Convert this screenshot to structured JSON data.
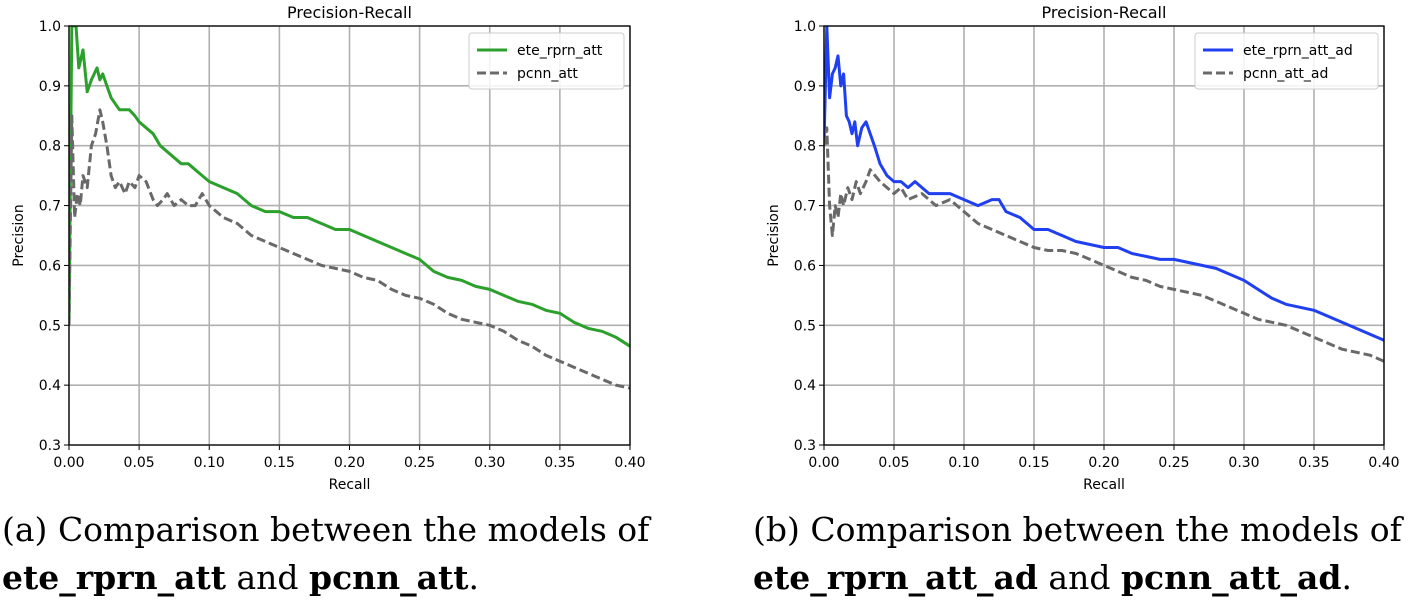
{
  "chart_data": [
    {
      "type": "line",
      "title": "Precision-Recall",
      "xlabel": "Recall",
      "ylabel": "Precision",
      "xlim": [
        0.0,
        0.4
      ],
      "ylim": [
        0.3,
        1.0
      ],
      "grid": true,
      "legend_position": "top-right",
      "xticks": [
        "0.00",
        "0.05",
        "0.10",
        "0.15",
        "0.20",
        "0.25",
        "0.30",
        "0.35",
        "0.40"
      ],
      "yticks": [
        "0.3",
        "0.4",
        "0.5",
        "0.6",
        "0.7",
        "0.8",
        "0.9",
        "1.0"
      ],
      "series": [
        {
          "name": "ete_rprn_att",
          "color": "#2ca02c",
          "style": "solid",
          "points": [
            [
              0.0,
              0.5
            ],
            [
              0.002,
              1.0
            ],
            [
              0.005,
              1.0
            ],
            [
              0.007,
              0.93
            ],
            [
              0.01,
              0.96
            ],
            [
              0.013,
              0.89
            ],
            [
              0.016,
              0.91
            ],
            [
              0.02,
              0.93
            ],
            [
              0.022,
              0.91
            ],
            [
              0.024,
              0.92
            ],
            [
              0.027,
              0.9
            ],
            [
              0.03,
              0.88
            ],
            [
              0.033,
              0.87
            ],
            [
              0.036,
              0.86
            ],
            [
              0.04,
              0.86
            ],
            [
              0.043,
              0.86
            ],
            [
              0.047,
              0.85
            ],
            [
              0.05,
              0.84
            ],
            [
              0.055,
              0.83
            ],
            [
              0.06,
              0.82
            ],
            [
              0.065,
              0.8
            ],
            [
              0.07,
              0.79
            ],
            [
              0.075,
              0.78
            ],
            [
              0.08,
              0.77
            ],
            [
              0.085,
              0.77
            ],
            [
              0.09,
              0.76
            ],
            [
              0.095,
              0.75
            ],
            [
              0.1,
              0.74
            ],
            [
              0.11,
              0.73
            ],
            [
              0.12,
              0.72
            ],
            [
              0.13,
              0.7
            ],
            [
              0.14,
              0.69
            ],
            [
              0.15,
              0.69
            ],
            [
              0.16,
              0.68
            ],
            [
              0.17,
              0.68
            ],
            [
              0.18,
              0.67
            ],
            [
              0.19,
              0.66
            ],
            [
              0.2,
              0.66
            ],
            [
              0.21,
              0.65
            ],
            [
              0.22,
              0.64
            ],
            [
              0.23,
              0.63
            ],
            [
              0.24,
              0.62
            ],
            [
              0.25,
              0.61
            ],
            [
              0.26,
              0.59
            ],
            [
              0.27,
              0.58
            ],
            [
              0.28,
              0.575
            ],
            [
              0.29,
              0.565
            ],
            [
              0.3,
              0.56
            ],
            [
              0.31,
              0.55
            ],
            [
              0.32,
              0.54
            ],
            [
              0.33,
              0.535
            ],
            [
              0.34,
              0.525
            ],
            [
              0.35,
              0.52
            ],
            [
              0.36,
              0.505
            ],
            [
              0.37,
              0.495
            ],
            [
              0.38,
              0.49
            ],
            [
              0.39,
              0.48
            ],
            [
              0.4,
              0.465
            ]
          ]
        },
        {
          "name": "pcnn_att",
          "color": "#696969",
          "style": "dashed",
          "points": [
            [
              0.0,
              0.5
            ],
            [
              0.002,
              0.85
            ],
            [
              0.004,
              0.68
            ],
            [
              0.006,
              0.72
            ],
            [
              0.008,
              0.7
            ],
            [
              0.01,
              0.75
            ],
            [
              0.013,
              0.73
            ],
            [
              0.016,
              0.8
            ],
            [
              0.019,
              0.82
            ],
            [
              0.022,
              0.86
            ],
            [
              0.024,
              0.84
            ],
            [
              0.027,
              0.8
            ],
            [
              0.03,
              0.75
            ],
            [
              0.033,
              0.73
            ],
            [
              0.036,
              0.74
            ],
            [
              0.04,
              0.72
            ],
            [
              0.043,
              0.74
            ],
            [
              0.047,
              0.73
            ],
            [
              0.05,
              0.75
            ],
            [
              0.055,
              0.74
            ],
            [
              0.06,
              0.71
            ],
            [
              0.063,
              0.7
            ],
            [
              0.067,
              0.71
            ],
            [
              0.07,
              0.72
            ],
            [
              0.075,
              0.7
            ],
            [
              0.08,
              0.71
            ],
            [
              0.085,
              0.7
            ],
            [
              0.09,
              0.7
            ],
            [
              0.095,
              0.72
            ],
            [
              0.1,
              0.7
            ],
            [
              0.11,
              0.68
            ],
            [
              0.12,
              0.67
            ],
            [
              0.13,
              0.65
            ],
            [
              0.14,
              0.64
            ],
            [
              0.15,
              0.63
            ],
            [
              0.16,
              0.62
            ],
            [
              0.17,
              0.61
            ],
            [
              0.18,
              0.6
            ],
            [
              0.19,
              0.595
            ],
            [
              0.2,
              0.59
            ],
            [
              0.21,
              0.58
            ],
            [
              0.22,
              0.575
            ],
            [
              0.23,
              0.56
            ],
            [
              0.24,
              0.55
            ],
            [
              0.25,
              0.545
            ],
            [
              0.26,
              0.535
            ],
            [
              0.27,
              0.52
            ],
            [
              0.28,
              0.51
            ],
            [
              0.29,
              0.505
            ],
            [
              0.3,
              0.5
            ],
            [
              0.31,
              0.49
            ],
            [
              0.32,
              0.475
            ],
            [
              0.33,
              0.465
            ],
            [
              0.34,
              0.45
            ],
            [
              0.35,
              0.44
            ],
            [
              0.36,
              0.43
            ],
            [
              0.37,
              0.42
            ],
            [
              0.38,
              0.41
            ],
            [
              0.39,
              0.4
            ],
            [
              0.4,
              0.395
            ]
          ]
        }
      ]
    },
    {
      "type": "line",
      "title": "Precision-Recall",
      "xlabel": "Recall",
      "ylabel": "Precision",
      "xlim": [
        0.0,
        0.4
      ],
      "ylim": [
        0.3,
        1.0
      ],
      "grid": true,
      "legend_position": "top-right",
      "xticks": [
        "0.00",
        "0.05",
        "0.10",
        "0.15",
        "0.20",
        "0.25",
        "0.30",
        "0.35",
        "0.40"
      ],
      "yticks": [
        "0.3",
        "0.4",
        "0.5",
        "0.6",
        "0.7",
        "0.8",
        "0.9",
        "1.0"
      ],
      "series": [
        {
          "name": "ete_rprn_att_ad",
          "color": "#1f3ff0",
          "style": "solid",
          "points": [
            [
              0.0,
              0.8
            ],
            [
              0.002,
              1.0
            ],
            [
              0.004,
              0.88
            ],
            [
              0.006,
              0.92
            ],
            [
              0.008,
              0.93
            ],
            [
              0.01,
              0.95
            ],
            [
              0.012,
              0.9
            ],
            [
              0.014,
              0.92
            ],
            [
              0.016,
              0.85
            ],
            [
              0.018,
              0.84
            ],
            [
              0.02,
              0.82
            ],
            [
              0.022,
              0.84
            ],
            [
              0.024,
              0.8
            ],
            [
              0.027,
              0.83
            ],
            [
              0.03,
              0.84
            ],
            [
              0.033,
              0.82
            ],
            [
              0.036,
              0.8
            ],
            [
              0.04,
              0.77
            ],
            [
              0.045,
              0.75
            ],
            [
              0.05,
              0.74
            ],
            [
              0.055,
              0.74
            ],
            [
              0.06,
              0.73
            ],
            [
              0.065,
              0.74
            ],
            [
              0.07,
              0.73
            ],
            [
              0.075,
              0.72
            ],
            [
              0.08,
              0.72
            ],
            [
              0.09,
              0.72
            ],
            [
              0.1,
              0.71
            ],
            [
              0.11,
              0.7
            ],
            [
              0.12,
              0.71
            ],
            [
              0.125,
              0.71
            ],
            [
              0.13,
              0.69
            ],
            [
              0.14,
              0.68
            ],
            [
              0.15,
              0.66
            ],
            [
              0.16,
              0.66
            ],
            [
              0.17,
              0.65
            ],
            [
              0.18,
              0.64
            ],
            [
              0.19,
              0.635
            ],
            [
              0.2,
              0.63
            ],
            [
              0.21,
              0.63
            ],
            [
              0.22,
              0.62
            ],
            [
              0.23,
              0.615
            ],
            [
              0.24,
              0.61
            ],
            [
              0.25,
              0.61
            ],
            [
              0.26,
              0.605
            ],
            [
              0.27,
              0.6
            ],
            [
              0.28,
              0.595
            ],
            [
              0.29,
              0.585
            ],
            [
              0.3,
              0.575
            ],
            [
              0.31,
              0.56
            ],
            [
              0.32,
              0.545
            ],
            [
              0.33,
              0.535
            ],
            [
              0.34,
              0.53
            ],
            [
              0.35,
              0.525
            ],
            [
              0.36,
              0.515
            ],
            [
              0.37,
              0.505
            ],
            [
              0.38,
              0.495
            ],
            [
              0.39,
              0.485
            ],
            [
              0.4,
              0.475
            ]
          ]
        },
        {
          "name": "pcnn_att_ad",
          "color": "#696969",
          "style": "dashed",
          "points": [
            [
              0.0,
              0.8
            ],
            [
              0.002,
              0.83
            ],
            [
              0.004,
              0.7
            ],
            [
              0.006,
              0.65
            ],
            [
              0.008,
              0.7
            ],
            [
              0.01,
              0.68
            ],
            [
              0.012,
              0.72
            ],
            [
              0.014,
              0.7
            ],
            [
              0.017,
              0.73
            ],
            [
              0.02,
              0.71
            ],
            [
              0.023,
              0.74
            ],
            [
              0.026,
              0.72
            ],
            [
              0.03,
              0.74
            ],
            [
              0.033,
              0.76
            ],
            [
              0.04,
              0.74
            ],
            [
              0.045,
              0.73
            ],
            [
              0.05,
              0.72
            ],
            [
              0.055,
              0.73
            ],
            [
              0.06,
              0.71
            ],
            [
              0.07,
              0.72
            ],
            [
              0.08,
              0.7
            ],
            [
              0.09,
              0.71
            ],
            [
              0.1,
              0.69
            ],
            [
              0.11,
              0.67
            ],
            [
              0.12,
              0.66
            ],
            [
              0.13,
              0.65
            ],
            [
              0.14,
              0.64
            ],
            [
              0.15,
              0.63
            ],
            [
              0.16,
              0.625
            ],
            [
              0.17,
              0.625
            ],
            [
              0.18,
              0.62
            ],
            [
              0.19,
              0.61
            ],
            [
              0.2,
              0.6
            ],
            [
              0.21,
              0.59
            ],
            [
              0.22,
              0.58
            ],
            [
              0.23,
              0.575
            ],
            [
              0.24,
              0.565
            ],
            [
              0.25,
              0.56
            ],
            [
              0.26,
              0.555
            ],
            [
              0.27,
              0.55
            ],
            [
              0.28,
              0.54
            ],
            [
              0.29,
              0.53
            ],
            [
              0.3,
              0.52
            ],
            [
              0.31,
              0.51
            ],
            [
              0.32,
              0.505
            ],
            [
              0.33,
              0.5
            ],
            [
              0.34,
              0.49
            ],
            [
              0.35,
              0.48
            ],
            [
              0.36,
              0.47
            ],
            [
              0.37,
              0.46
            ],
            [
              0.38,
              0.455
            ],
            [
              0.39,
              0.45
            ],
            [
              0.4,
              0.44
            ]
          ]
        }
      ]
    }
  ],
  "captions": [
    {
      "label": "(a)",
      "text": "Comparison between the models of",
      "model_1": "ete_rprn_att",
      "conjunction": "and",
      "model_2": "pcnn_att",
      "end": "."
    },
    {
      "label": "(b)",
      "text": "Comparison between the models of",
      "model_1": "ete_rprn_att_ad",
      "conjunction": "and",
      "model_2": "pcnn_att_ad",
      "end": "."
    }
  ]
}
